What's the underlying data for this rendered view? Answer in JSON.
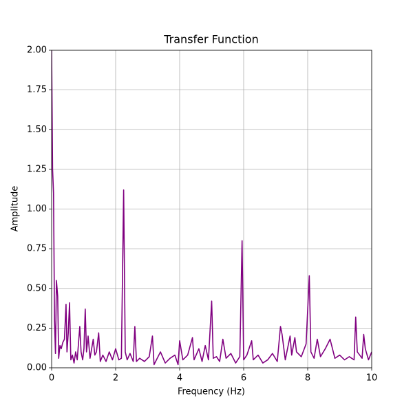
{
  "chart_data": {
    "type": "line",
    "title": "Transfer Function",
    "x_label": "Frequency (Hz)",
    "y_label": "Amplitude",
    "series": [
      {
        "name": "Transfer Function",
        "color": "#800080",
        "x": [
          0,
          0.03,
          0.06,
          0.09,
          0.12,
          0.15,
          0.19,
          0.22,
          0.26,
          0.3,
          0.35,
          0.4,
          0.45,
          0.48,
          0.52,
          0.56,
          0.6,
          0.65,
          0.7,
          0.75,
          0.8,
          0.88,
          0.92,
          0.97,
          1.01,
          1.05,
          1.09,
          1.14,
          1.2,
          1.25,
          1.3,
          1.35,
          1.4,
          1.47,
          1.52,
          1.6,
          1.7,
          1.8,
          1.9,
          2.0,
          2.1,
          2.18,
          2.25,
          2.3,
          2.36,
          2.45,
          2.55,
          2.6,
          2.65,
          2.75,
          2.9,
          3.05,
          3.15,
          3.2,
          3.3,
          3.4,
          3.55,
          3.7,
          3.85,
          3.95,
          4.0,
          4.1,
          4.25,
          4.4,
          4.45,
          4.6,
          4.7,
          4.8,
          4.9,
          5.0,
          5.05,
          5.15,
          5.25,
          5.35,
          5.45,
          5.6,
          5.75,
          5.88,
          5.95,
          6.0,
          6.1,
          6.25,
          6.3,
          6.45,
          6.6,
          6.75,
          6.9,
          7.05,
          7.15,
          7.2,
          7.3,
          7.45,
          7.5,
          7.6,
          7.65,
          7.8,
          7.95,
          8.05,
          8.1,
          8.2,
          8.3,
          8.4,
          8.55,
          8.7,
          8.85,
          9.0,
          9.15,
          9.3,
          9.45,
          9.5,
          9.55,
          9.7,
          9.75,
          9.8,
          9.9,
          10.0
        ],
        "values": [
          2.0,
          1.25,
          1.1,
          0.3,
          0.09,
          0.55,
          0.45,
          0.06,
          0.14,
          0.12,
          0.16,
          0.18,
          0.4,
          0.1,
          0.22,
          0.41,
          0.05,
          0.08,
          0.03,
          0.1,
          0.05,
          0.26,
          0.1,
          0.05,
          0.12,
          0.37,
          0.1,
          0.2,
          0.06,
          0.12,
          0.18,
          0.08,
          0.1,
          0.22,
          0.04,
          0.08,
          0.04,
          0.1,
          0.05,
          0.12,
          0.05,
          0.06,
          1.12,
          0.1,
          0.05,
          0.09,
          0.04,
          0.26,
          0.04,
          0.06,
          0.04,
          0.07,
          0.2,
          0.02,
          0.06,
          0.1,
          0.03,
          0.06,
          0.08,
          0.02,
          0.17,
          0.05,
          0.08,
          0.19,
          0.05,
          0.12,
          0.04,
          0.14,
          0.05,
          0.42,
          0.06,
          0.07,
          0.04,
          0.18,
          0.06,
          0.09,
          0.03,
          0.07,
          0.8,
          0.05,
          0.08,
          0.17,
          0.05,
          0.08,
          0.03,
          0.05,
          0.09,
          0.04,
          0.26,
          0.21,
          0.05,
          0.2,
          0.08,
          0.19,
          0.1,
          0.07,
          0.15,
          0.58,
          0.1,
          0.06,
          0.18,
          0.07,
          0.12,
          0.18,
          0.06,
          0.08,
          0.05,
          0.07,
          0.05,
          0.32,
          0.1,
          0.06,
          0.21,
          0.12,
          0.05,
          0.1
        ]
      }
    ],
    "xlim": [
      0,
      10
    ],
    "xticks": [
      0,
      2,
      4,
      6,
      8,
      10
    ],
    "ylim": [
      0,
      2
    ],
    "yticks": [
      {
        "value": 0,
        "label": "0.00"
      },
      {
        "value": 0.25,
        "label": "0.25"
      },
      {
        "value": 0.5,
        "label": "0.50"
      },
      {
        "value": 0.75,
        "label": "0.75"
      },
      {
        "value": 1,
        "label": "1.00"
      },
      {
        "value": 1.25,
        "label": "1.25"
      },
      {
        "value": 1.5,
        "label": "1.50"
      },
      {
        "value": 1.75,
        "label": "1.75"
      },
      {
        "value": 2,
        "label": "2.00"
      }
    ],
    "grid": true
  }
}
